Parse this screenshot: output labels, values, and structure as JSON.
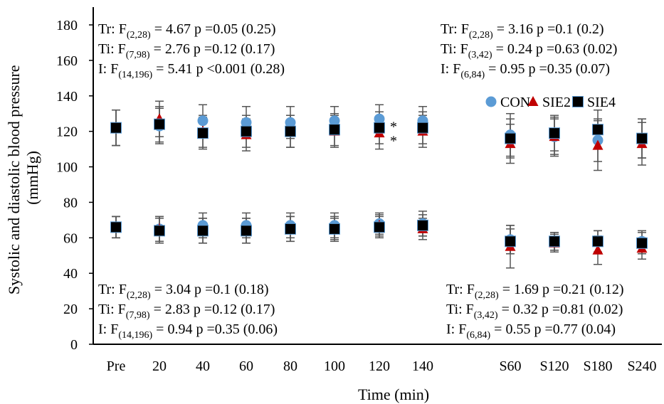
{
  "chart_data": {
    "type": "scatter",
    "xlabel": "Time (min)",
    "ylabel_line1": "Systolic and diastolic blood pressure",
    "ylabel_line2": "(mmHg)",
    "ylim": [
      0,
      180
    ],
    "yticks": [
      0,
      20,
      40,
      60,
      80,
      100,
      120,
      140,
      160,
      180
    ],
    "categories": [
      "Pre",
      "20",
      "40",
      "60",
      "80",
      "100",
      "120",
      "140",
      "S60",
      "S120",
      "S180",
      "S240"
    ],
    "grid": false,
    "legend_position": "right, below top-right annotations",
    "series": [
      {
        "name": "CON",
        "marker": "circle",
        "color": "#5B9BD5",
        "systolic": [
          122,
          123,
          126,
          125,
          125,
          126,
          127,
          126,
          118,
          117,
          115,
          116
        ],
        "systolic_err": [
          10,
          10,
          9,
          9,
          9,
          8,
          8,
          8,
          12,
          11,
          12,
          11
        ],
        "diastolic": [
          66,
          65,
          67,
          67,
          67,
          67,
          68,
          68,
          59,
          58,
          58,
          58
        ],
        "diastolic_err": [
          6,
          7,
          7,
          7,
          7,
          7,
          6,
          7,
          8,
          5,
          6,
          6
        ]
      },
      {
        "name": "SIE2",
        "marker": "triangle",
        "color": "#C00000",
        "systolic": [
          122,
          127,
          120,
          118,
          120,
          120,
          119,
          120,
          113,
          117,
          112,
          113
        ],
        "systolic_err": [
          10,
          10,
          9,
          9,
          9,
          9,
          9,
          9,
          11,
          10,
          14,
          12
        ],
        "diastolic": [
          66,
          65,
          64,
          64,
          65,
          65,
          67,
          65,
          55,
          57,
          53,
          54
        ],
        "diastolic_err": [
          6,
          7,
          7,
          7,
          7,
          6,
          6,
          6,
          12,
          5,
          8,
          6
        ]
      },
      {
        "name": "SIE4",
        "marker": "square",
        "color": "#000000",
        "systolic": [
          122,
          124,
          119,
          120,
          120,
          121,
          122,
          122,
          116,
          119,
          121,
          116
        ],
        "systolic_err": [
          10,
          10,
          9,
          9,
          9,
          9,
          9,
          9,
          11,
          10,
          11,
          11
        ],
        "diastolic": [
          66,
          64,
          64,
          64,
          65,
          65,
          66,
          67,
          58,
          58,
          58,
          57
        ],
        "diastolic_err": [
          6,
          7,
          7,
          7,
          7,
          7,
          6,
          6,
          7,
          5,
          6,
          6
        ]
      }
    ],
    "significance_marks": [
      {
        "category": "120",
        "text": "*",
        "y": 124
      },
      {
        "category": "120",
        "text": "*",
        "y": 116
      }
    ],
    "annotations": {
      "top_left": [
        {
          "pre": "Tr: F",
          "sub": "(2,28)",
          "post": " = 4.67 p =0.05 (0.25)"
        },
        {
          "pre": "Ti: F",
          "sub": "(7,98)",
          "post": " = 2.76 p =0.12 (0.17)"
        },
        {
          "pre": "I: F",
          "sub": "(14,196)",
          "post": " = 5.41 p <0.001 (0.28)"
        }
      ],
      "top_right": [
        {
          "pre": "Tr: F",
          "sub": "(2,28)",
          "post": " = 3.16 p =0.1 (0.2)"
        },
        {
          "pre": "Ti: F",
          "sub": "(3,42)",
          "post": " = 0.24 p =0.63 (0.02)"
        },
        {
          "pre": "I: F",
          "sub": "(6,84)",
          "post": " = 0.95 p =0.35 (0.07)"
        }
      ],
      "bottom_left": [
        {
          "pre": "Tr: F",
          "sub": "(2,28)",
          "post": " = 3.04 p =0.1 (0.18)"
        },
        {
          "pre": "Ti: F",
          "sub": "(7,98)",
          "post": " = 2.83 p =0.12 (0.17)"
        },
        {
          "pre": "I: F",
          "sub": "(14,196)",
          "post": " = 0.94 p =0.35  (0.06)"
        }
      ],
      "bottom_right": [
        {
          "pre": "Tr: F",
          "sub": "(2,28)",
          "post": " = 1.69 p =0.21 (0.12)"
        },
        {
          "pre": "Ti: F",
          "sub": "(3,42)",
          "post": " = 0.32 p =0.81 (0.02)"
        },
        {
          "pre": "I: F",
          "sub": "(6,84)",
          "post": " = 0.55 p =0.77 (0.04)"
        }
      ]
    }
  }
}
